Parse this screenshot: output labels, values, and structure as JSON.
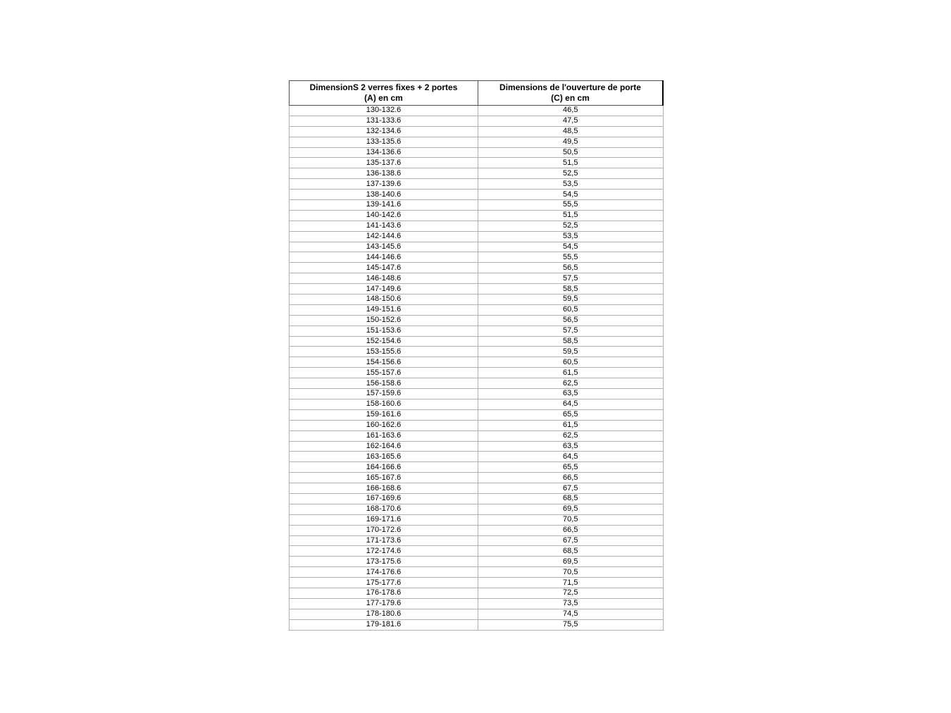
{
  "page": {
    "background": "#ffffff",
    "text_color": "#000000"
  },
  "colors": {
    "row_border": "#b0b0b0",
    "header_border": "#4d4d4d",
    "header_right_accent": "#000000"
  },
  "table": {
    "columns": [
      {
        "line1": "DimensionS 2 verres fixes + 2 portes",
        "line2": "(A) en cm"
      },
      {
        "line1": "Dimensions de l'ouverture de porte",
        "line2": "(C) en cm"
      }
    ],
    "rows": [
      [
        "130-132.6",
        "46,5"
      ],
      [
        "131-133.6",
        "47,5"
      ],
      [
        "132-134.6",
        "48,5"
      ],
      [
        "133-135.6",
        "49,5"
      ],
      [
        "134-136.6",
        "50,5"
      ],
      [
        "135-137.6",
        "51,5"
      ],
      [
        "136-138.6",
        "52,5"
      ],
      [
        "137-139.6",
        "53,5"
      ],
      [
        "138-140.6",
        "54,5"
      ],
      [
        "139-141.6",
        "55,5"
      ],
      [
        "140-142.6",
        "51,5"
      ],
      [
        "141-143.6",
        "52,5"
      ],
      [
        "142-144.6",
        "53,5"
      ],
      [
        "143-145.6",
        "54,5"
      ],
      [
        "144-146.6",
        "55,5"
      ],
      [
        "145-147.6",
        "56,5"
      ],
      [
        "146-148.6",
        "57,5"
      ],
      [
        "147-149.6",
        "58,5"
      ],
      [
        "148-150.6",
        "59,5"
      ],
      [
        "149-151.6",
        "60,5"
      ],
      [
        "150-152.6",
        "56,5"
      ],
      [
        "151-153.6",
        "57,5"
      ],
      [
        "152-154.6",
        "58,5"
      ],
      [
        "153-155.6",
        "59,5"
      ],
      [
        "154-156.6",
        "60,5"
      ],
      [
        "155-157.6",
        "61,5"
      ],
      [
        "156-158.6",
        "62,5"
      ],
      [
        "157-159.6",
        "63,5"
      ],
      [
        "158-160.6",
        "64,5"
      ],
      [
        "159-161.6",
        "65,5"
      ],
      [
        "160-162.6",
        "61,5"
      ],
      [
        "161-163.6",
        "62,5"
      ],
      [
        "162-164.6",
        "63,5"
      ],
      [
        "163-165.6",
        "64,5"
      ],
      [
        "164-166.6",
        "65,5"
      ],
      [
        "165-167.6",
        "66,5"
      ],
      [
        "166-168.6",
        "67,5"
      ],
      [
        "167-169.6",
        "68,5"
      ],
      [
        "168-170.6",
        "69,5"
      ],
      [
        "169-171.6",
        "70,5"
      ],
      [
        "170-172.6",
        "66,5"
      ],
      [
        "171-173.6",
        "67,5"
      ],
      [
        "172-174.6",
        "68,5"
      ],
      [
        "173-175.6",
        "69,5"
      ],
      [
        "174-176.6",
        "70,5"
      ],
      [
        "175-177.6",
        "71,5"
      ],
      [
        "176-178.6",
        "72,5"
      ],
      [
        "177-179.6",
        "73,5"
      ],
      [
        "178-180.6",
        "74,5"
      ],
      [
        "179-181.6",
        "75,5"
      ]
    ]
  }
}
